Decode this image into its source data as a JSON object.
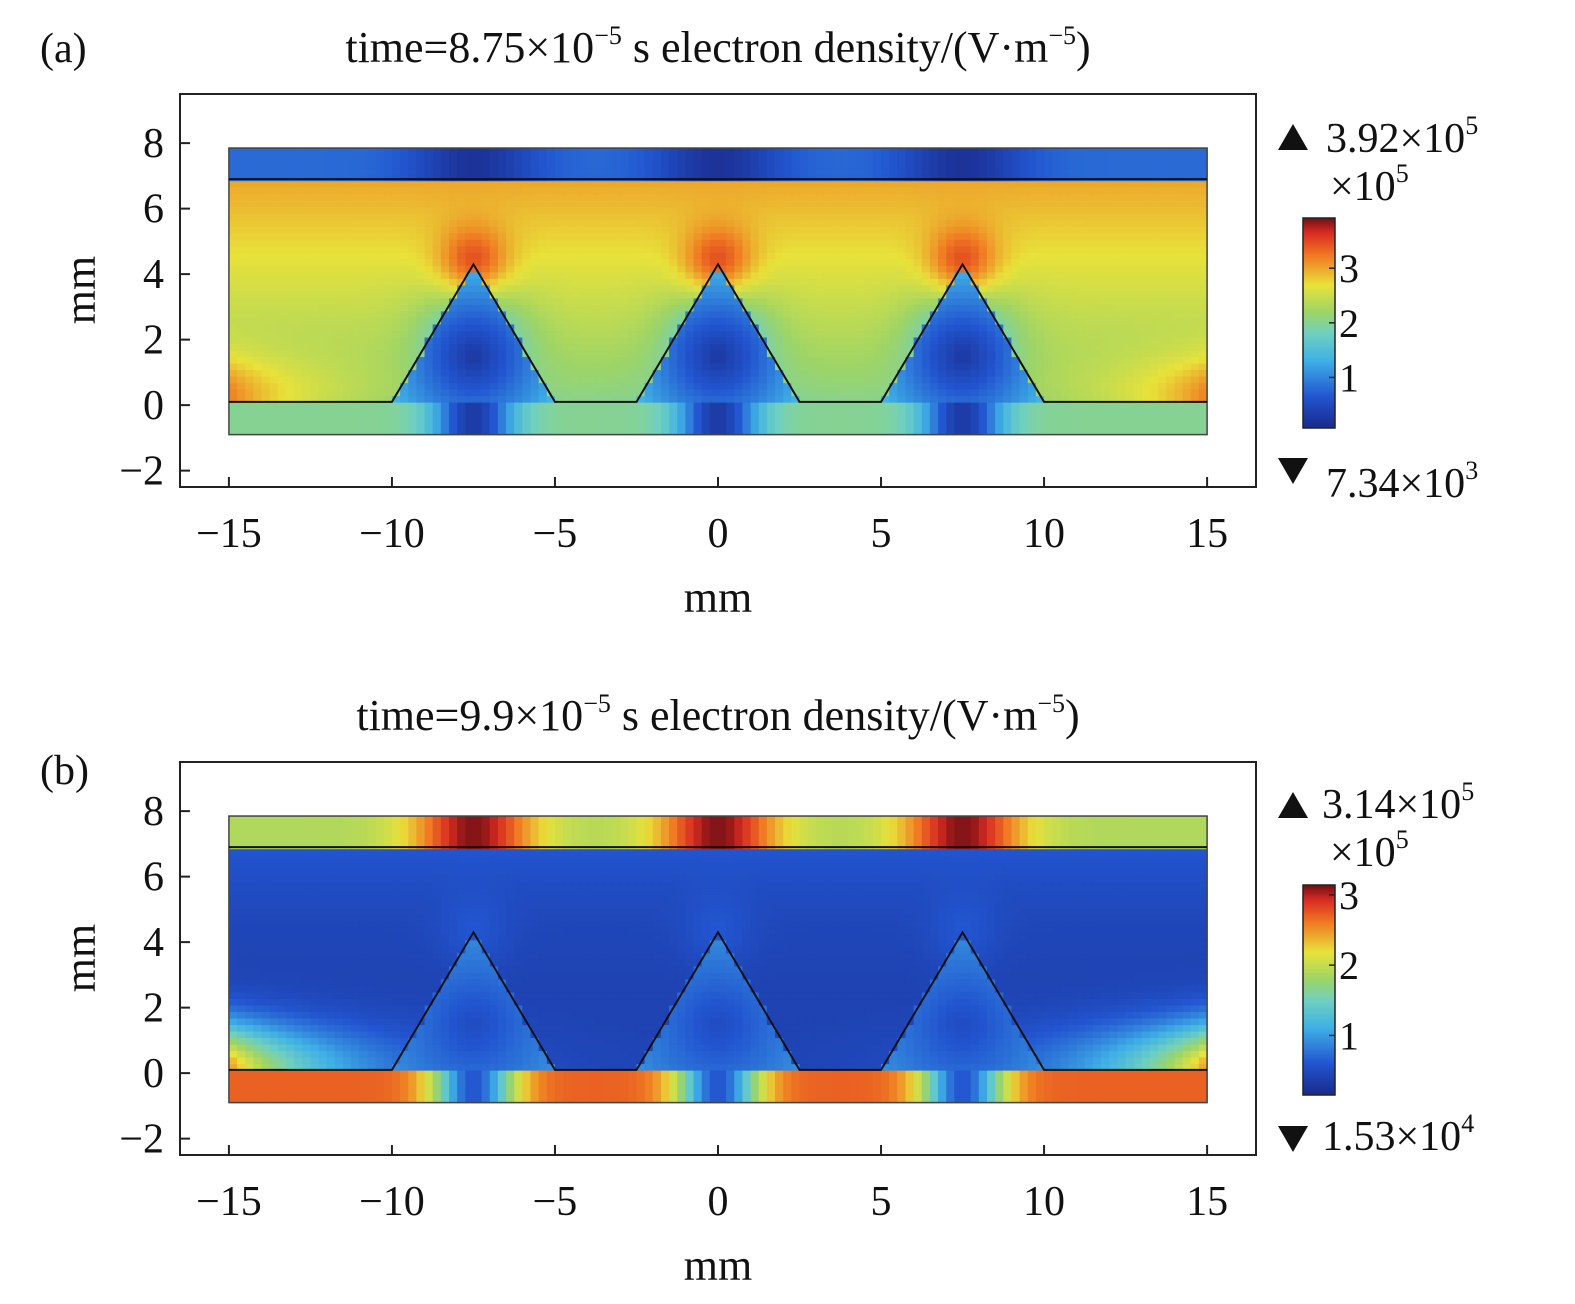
{
  "chart_data": [
    {
      "type": "heatmap",
      "panel_label": "(a)",
      "title": {
        "prefix": "time=8.75×10",
        "exp": "−5",
        "middle": " s electron density/(V·m",
        "exp2": "−5",
        "suffix": ")"
      },
      "xlabel": "mm",
      "ylabel": "mm",
      "xlim": [
        -16.5,
        16.5
      ],
      "ylim": [
        -2.5,
        9.5
      ],
      "xticks": [
        -15,
        -10,
        -5,
        0,
        5,
        10,
        15
      ],
      "yticks": [
        -2,
        0,
        2,
        4,
        6,
        8
      ],
      "domain": {
        "x": [
          -15,
          15
        ],
        "y_bottom": -0.9,
        "plate_low": 0.1,
        "plate_high": 6.9,
        "y_top": 7.85
      },
      "tips": [
        -7.5,
        0,
        7.5
      ],
      "tip_height": 4.3,
      "tip_half_base": 2.5,
      "colorbar": {
        "max_mant": "3.92×10",
        "max_exp": "5",
        "scale_mant": "×10",
        "scale_exp": "5",
        "min_mant": "7.34×10",
        "min_exp": "3",
        "range": [
          0.0734,
          3.92
        ],
        "ticks": [
          1,
          2,
          3
        ]
      },
      "field": {
        "base": 2.0,
        "gap_top": 3.0,
        "top_layer": 0.8,
        "bottom_layer": 2.0,
        "left_right_edge_low": 3.2,
        "tip_region": 0.25
      }
    },
    {
      "type": "heatmap",
      "panel_label": "(b)",
      "title": {
        "prefix": "time=9.9×10",
        "exp": "−5",
        "middle": " s electron density/(V·m",
        "exp2": "−5",
        "suffix": ")"
      },
      "xlabel": "mm",
      "ylabel": "mm",
      "xlim": [
        -16.5,
        16.5
      ],
      "ylim": [
        -2.5,
        9.5
      ],
      "xticks": [
        -15,
        -10,
        -5,
        0,
        5,
        10,
        15
      ],
      "yticks": [
        -2,
        0,
        2,
        4,
        6,
        8
      ],
      "domain": {
        "x": [
          -15,
          15
        ],
        "y_bottom": -0.9,
        "plate_low": 0.1,
        "plate_high": 6.9,
        "y_top": 7.85
      },
      "tips": [
        -7.5,
        0,
        7.5
      ],
      "tip_height": 4.3,
      "tip_half_base": 2.5,
      "colorbar": {
        "max_mant": "3.14×10",
        "max_exp": "5",
        "scale_mant": "×10",
        "scale_exp": "5",
        "min_mant": "1.53×10",
        "min_exp": "4",
        "range": [
          0.153,
          3.14
        ],
        "ticks": [
          1,
          2,
          3
        ]
      },
      "field": {
        "base": 0.4,
        "gap_top": 0.6,
        "top_layer": 1.9,
        "bottom_layer": 2.7,
        "left_right_edge_low": 2.5,
        "tip_region": 0.5
      }
    }
  ]
}
